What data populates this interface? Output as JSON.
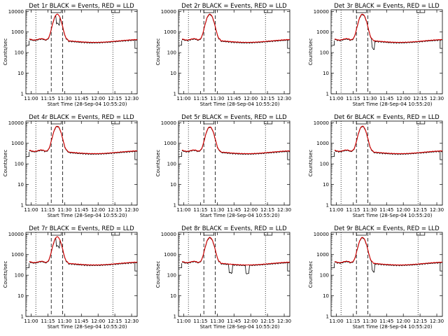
{
  "figure": {
    "background": "#ffffff"
  },
  "chart_data": [
    {
      "type": "line",
      "title": "Det 1r BLACK = Events, RED = LLD",
      "xlabel": "Start Time (28-Sep-04 10:55:20)",
      "ylabel": "Counts/sec",
      "xticks": [
        "11:00",
        "11:15",
        "11:30",
        "11:45",
        "12:00",
        "12:15",
        "12:30"
      ],
      "yticks": [
        "1",
        "10",
        "100",
        "1000",
        "10000"
      ],
      "ylim": [
        1,
        12000
      ],
      "yscale": "log",
      "dips": [
        [
          11.4,
          0.38
        ]
      ],
      "peak": 7000
    },
    {
      "type": "line",
      "title": "Det 2r BLACK = Events, RED = LLD",
      "xlabel": "Start Time (28-Sep-04 10:55:20)",
      "ylabel": "Counts/sec",
      "xticks": [
        "11:00",
        "11:15",
        "11:30",
        "11:45",
        "12:00",
        "12:15",
        "12:30"
      ],
      "yticks": [
        "1",
        "10",
        "100",
        "1000",
        "10000"
      ],
      "ylim": [
        1,
        12000
      ],
      "yscale": "log",
      "dips": [],
      "peak": 7000
    },
    {
      "type": "line",
      "title": "Det 3r BLACK = Events, RED = LLD",
      "xlabel": "Start Time (28-Sep-04 10:55:20)",
      "ylabel": "Counts/sec",
      "xticks": [
        "11:00",
        "11:15",
        "11:30",
        "11:45",
        "12:00",
        "12:15",
        "12:30"
      ],
      "yticks": [
        "1",
        "10",
        "100",
        "1000",
        "10000"
      ],
      "ylim": [
        1,
        12000
      ],
      "yscale": "log",
      "dips": [
        [
          11.55,
          0.4
        ]
      ],
      "peak": 7000
    },
    {
      "type": "line",
      "title": "Det 4r BLACK = Events, RED = LLD",
      "xlabel": "Start Time (28-Sep-04 10:55:20)",
      "ylabel": "Counts/sec",
      "xticks": [
        "11:00",
        "11:15",
        "11:30",
        "11:45",
        "12:00",
        "12:15",
        "12:30"
      ],
      "yticks": [
        "1",
        "10",
        "100",
        "1000",
        "10000"
      ],
      "ylim": [
        1,
        12000
      ],
      "yscale": "log",
      "dips": [],
      "peak": 6500
    },
    {
      "type": "line",
      "title": "Det 5r BLACK = Events, RED = LLD",
      "xlabel": "Start Time (28-Sep-04 10:55:20)",
      "ylabel": "Counts/sec",
      "xticks": [
        "11:00",
        "11:15",
        "11:30",
        "11:45",
        "12:00",
        "12:15",
        "12:30"
      ],
      "yticks": [
        "1",
        "10",
        "100",
        "1000",
        "10000"
      ],
      "ylim": [
        1,
        12000
      ],
      "yscale": "log",
      "dips": [],
      "peak": 6000
    },
    {
      "type": "line",
      "title": "Det 6r BLACK = Events, RED = LLD",
      "xlabel": "Start Time (28-Sep-04 10:55:20)",
      "ylabel": "Counts/sec",
      "xticks": [
        "11:00",
        "11:15",
        "11:30",
        "11:45",
        "12:00",
        "12:15",
        "12:30"
      ],
      "yticks": [
        "1",
        "10",
        "100",
        "1000",
        "10000"
      ],
      "ylim": [
        1,
        12000
      ],
      "yscale": "log",
      "dips": [],
      "peak": 6500
    },
    {
      "type": "line",
      "title": "Det 7r BLACK = Events, RED = LLD",
      "xlabel": "Start Time (28-Sep-04 10:55:20)",
      "ylabel": "Counts/sec",
      "xticks": [
        "11:00",
        "11:15",
        "11:30",
        "11:45",
        "12:00",
        "12:15",
        "12:30"
      ],
      "yticks": [
        "1",
        "10",
        "100",
        "1000",
        "10000"
      ],
      "ylim": [
        1,
        12000
      ],
      "yscale": "log",
      "dips": [
        [
          11.4,
          0.38
        ]
      ],
      "peak": 7000
    },
    {
      "type": "line",
      "title": "Det 8r BLACK = Events, RED = LLD",
      "xlabel": "Start Time (28-Sep-04 10:55:20)",
      "ylabel": "Counts/sec",
      "xticks": [
        "11:00",
        "11:15",
        "11:30",
        "11:45",
        "12:00",
        "12:15",
        "12:30"
      ],
      "yticks": [
        "1",
        "10",
        "100",
        "1000",
        "10000"
      ],
      "ylim": [
        1,
        12000
      ],
      "yscale": "log",
      "dips": [
        [
          11.7,
          0.4
        ],
        [
          11.95,
          0.4
        ]
      ],
      "peak": 6500
    },
    {
      "type": "line",
      "title": "Det 9r BLACK = Events, RED = LLD",
      "xlabel": "Start Time (28-Sep-04 10:55:20)",
      "ylabel": "Counts/sec",
      "xticks": [
        "11:00",
        "11:15",
        "11:30",
        "11:45",
        "12:00",
        "12:15",
        "12:30"
      ],
      "yticks": [
        "1",
        "10",
        "100",
        "1000",
        "10000"
      ],
      "ylim": [
        1,
        12000
      ],
      "yscale": "log",
      "dips": [
        [
          11.55,
          0.4
        ]
      ],
      "peak": 6500
    }
  ],
  "series_style": {
    "events_color": "#000000",
    "lld_color": "#d40000",
    "baseline": 400
  },
  "markers": {
    "dotted_times": [
      11.07,
      12.22
    ],
    "dashed_times": [
      11.3,
      11.47
    ]
  }
}
